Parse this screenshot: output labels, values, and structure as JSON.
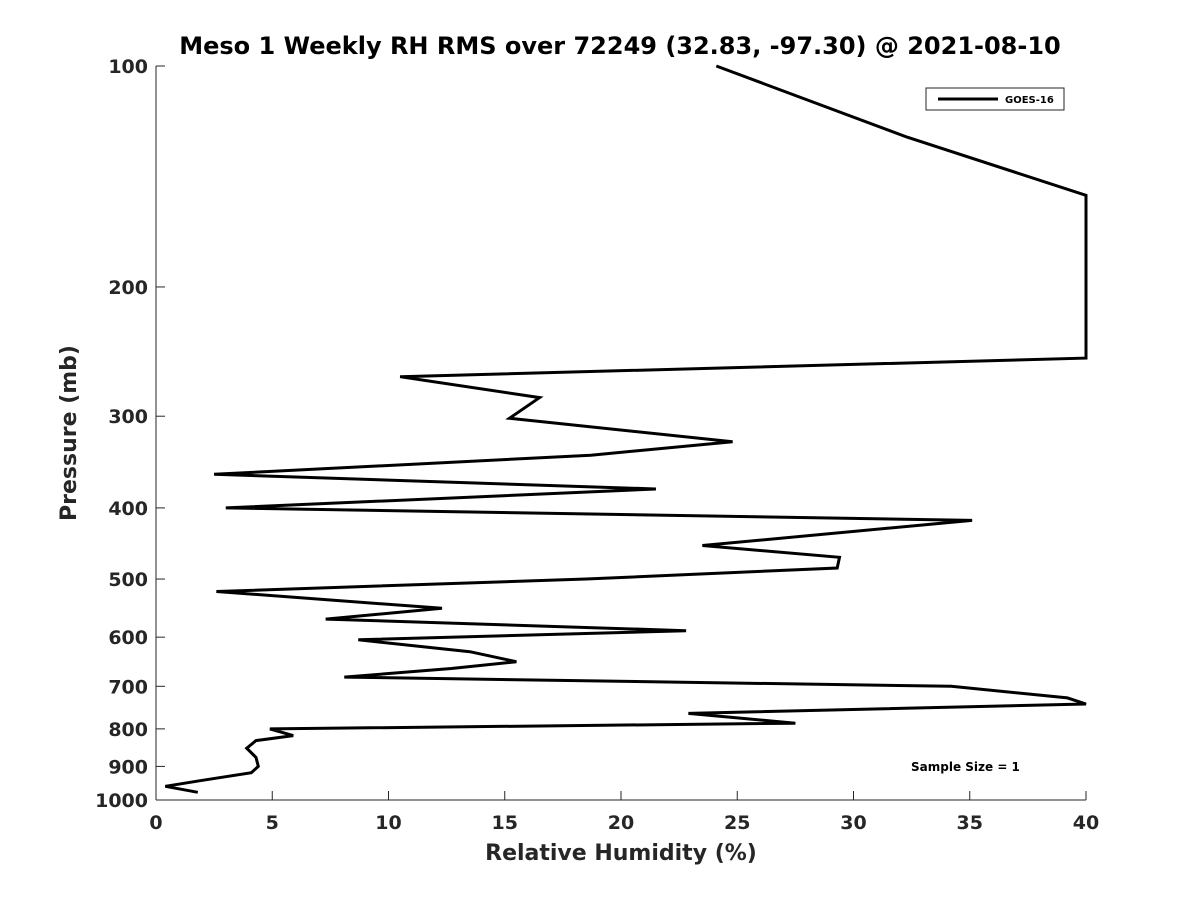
{
  "chart_data": {
    "type": "line",
    "title": "Meso 1 Weekly RH RMS over 72249 (32.83, -97.30) @ 2021-08-10",
    "xlabel": "Relative Humidity (%)",
    "ylabel": "Pressure (mb)",
    "xlim": [
      0,
      40
    ],
    "ylim": [
      100,
      1000
    ],
    "y_scale": "log",
    "y_reversed": true,
    "x_ticks": [
      "0",
      "5",
      "10",
      "15",
      "20",
      "25",
      "30",
      "35",
      "40"
    ],
    "y_ticks": [
      "100",
      "200",
      "300",
      "400",
      "500",
      "600",
      "700",
      "800",
      "900",
      "1000"
    ],
    "grid": false,
    "legend_position": "top-right",
    "annotation": "Sample Size = 1",
    "series": [
      {
        "name": "GOES-16",
        "color": "#000000",
        "points": [
          [
            24.1,
            100
          ],
          [
            32.3,
            125
          ],
          [
            40.0,
            150
          ],
          [
            40.0,
            250
          ],
          [
            10.5,
            265
          ],
          [
            16.5,
            283
          ],
          [
            15.2,
            302
          ],
          [
            24.8,
            325
          ],
          [
            18.7,
            339
          ],
          [
            2.5,
            360
          ],
          [
            21.5,
            377
          ],
          [
            3.0,
            400
          ],
          [
            35.1,
            416
          ],
          [
            23.5,
            450
          ],
          [
            29.4,
            467
          ],
          [
            29.3,
            483
          ],
          [
            18.5,
            500
          ],
          [
            2.6,
            520
          ],
          [
            12.3,
            548
          ],
          [
            7.3,
            567
          ],
          [
            22.8,
            588
          ],
          [
            8.7,
            605
          ],
          [
            13.5,
            628
          ],
          [
            15.5,
            648
          ],
          [
            12.7,
            662
          ],
          [
            8.1,
            680
          ],
          [
            34.2,
            700
          ],
          [
            39.2,
            726
          ],
          [
            40.0,
            740
          ],
          [
            22.9,
            762
          ],
          [
            27.5,
            786
          ],
          [
            4.9,
            800
          ],
          [
            5.9,
            817
          ],
          [
            4.3,
            830
          ],
          [
            3.9,
            850
          ],
          [
            4.3,
            875
          ],
          [
            4.4,
            900
          ],
          [
            4.1,
            918
          ],
          [
            2.0,
            940
          ],
          [
            0.4,
            958
          ],
          [
            1.8,
            976
          ]
        ]
      }
    ]
  }
}
